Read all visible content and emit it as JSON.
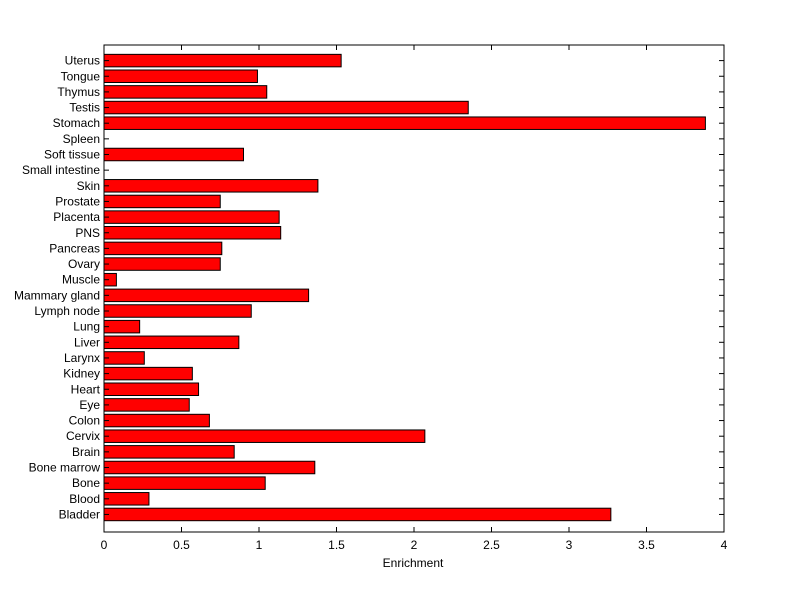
{
  "chart_data": {
    "type": "bar",
    "orientation": "horizontal",
    "title": "",
    "xlabel": "Enrichment",
    "ylabel": "",
    "xlim": [
      0,
      4
    ],
    "x_ticks": [
      "0",
      "0.5",
      "1",
      "1.5",
      "2",
      "2.5",
      "3",
      "3.5",
      "4"
    ],
    "grid": false,
    "bar_color": "#ff0000",
    "categories": [
      "Bladder",
      "Blood",
      "Bone",
      "Bone marrow",
      "Brain",
      "Cervix",
      "Colon",
      "Eye",
      "Heart",
      "Kidney",
      "Larynx",
      "Liver",
      "Lung",
      "Lymph node",
      "Mammary gland",
      "Muscle",
      "Ovary",
      "Pancreas",
      "PNS",
      "Placenta",
      "Prostate",
      "Skin",
      "Small intestine",
      "Soft tissue",
      "Spleen",
      "Stomach",
      "Testis",
      "Thymus",
      "Tongue",
      "Uterus"
    ],
    "values": [
      3.27,
      0.29,
      1.04,
      1.36,
      0.84,
      2.07,
      0.68,
      0.55,
      0.61,
      0.57,
      0.26,
      0.87,
      0.23,
      0.95,
      1.32,
      0.08,
      0.75,
      0.76,
      1.14,
      1.13,
      0.75,
      1.38,
      0.0,
      0.9,
      0.0,
      3.88,
      2.35,
      1.05,
      0.99,
      1.53
    ]
  }
}
